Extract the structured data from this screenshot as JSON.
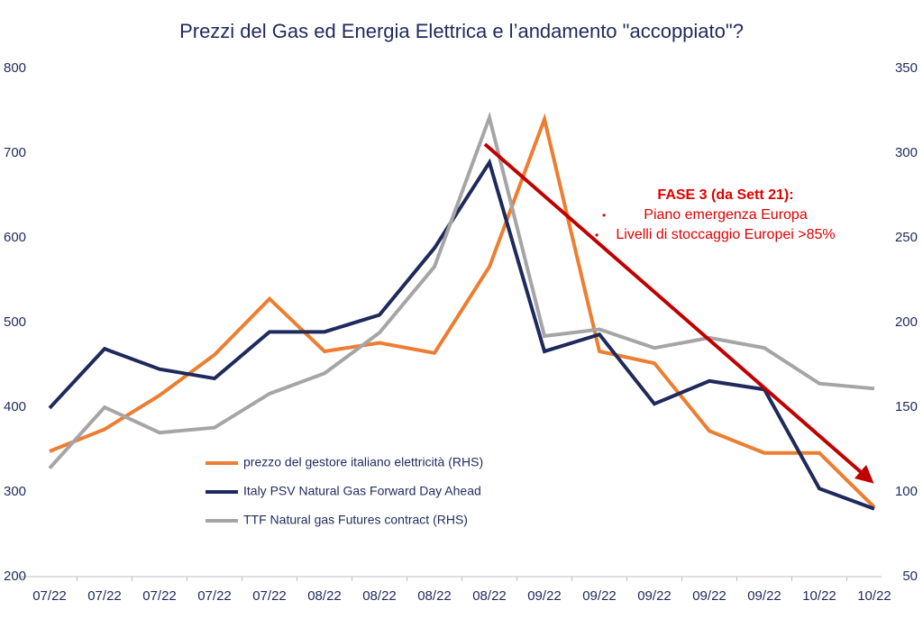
{
  "chart_data": {
    "type": "line",
    "title": "Prezzi del Gas ed Energia Elettrica e l’andamento \"accoppiato\"?",
    "categories": [
      "07/22",
      "07/22",
      "07/22",
      "07/22",
      "07/22",
      "08/22",
      "08/22",
      "08/22",
      "08/22",
      "09/22",
      "09/22",
      "09/22",
      "09/22",
      "09/22",
      "10/22",
      "10/22"
    ],
    "ylim": [
      200,
      800
    ],
    "yticks": [
      200,
      300,
      400,
      500,
      600,
      700,
      800
    ],
    "y2lim": [
      50,
      350
    ],
    "y2ticks": [
      50,
      100,
      150,
      200,
      250,
      300,
      350
    ],
    "grid": false,
    "legend": "lower-left",
    "series": [
      {
        "name": "prezzo del gestore italiano elettricità (RHS)",
        "color": "#ed7d31",
        "axis": "y2",
        "values": [
          124,
          137,
          157,
          181,
          214,
          183,
          188,
          182,
          233,
          320,
          183,
          176,
          136,
          123,
          123,
          91
        ]
      },
      {
        "name": "Italy PSV Natural Gas Forward Day Ahead",
        "color": "#1f2a5c",
        "values": [
          399,
          469,
          445,
          434,
          489,
          489,
          509,
          588,
          689,
          466,
          486,
          404,
          431,
          421,
          304,
          280
        ]
      },
      {
        "name": "TTF Natural gas Futures contract (RHS)",
        "color": "#a5a5a5",
        "axis": "y2",
        "values": [
          114,
          150,
          135,
          138,
          158,
          170,
          194,
          233,
          321,
          192,
          196,
          185,
          191,
          185,
          164,
          161
        ]
      }
    ],
    "annotation": {
      "title": "FASE 3 (da Sett 21):",
      "items": [
        "Piano emergenza Europa",
        "Livelli di stoccaggio Europei >85%"
      ]
    }
  }
}
